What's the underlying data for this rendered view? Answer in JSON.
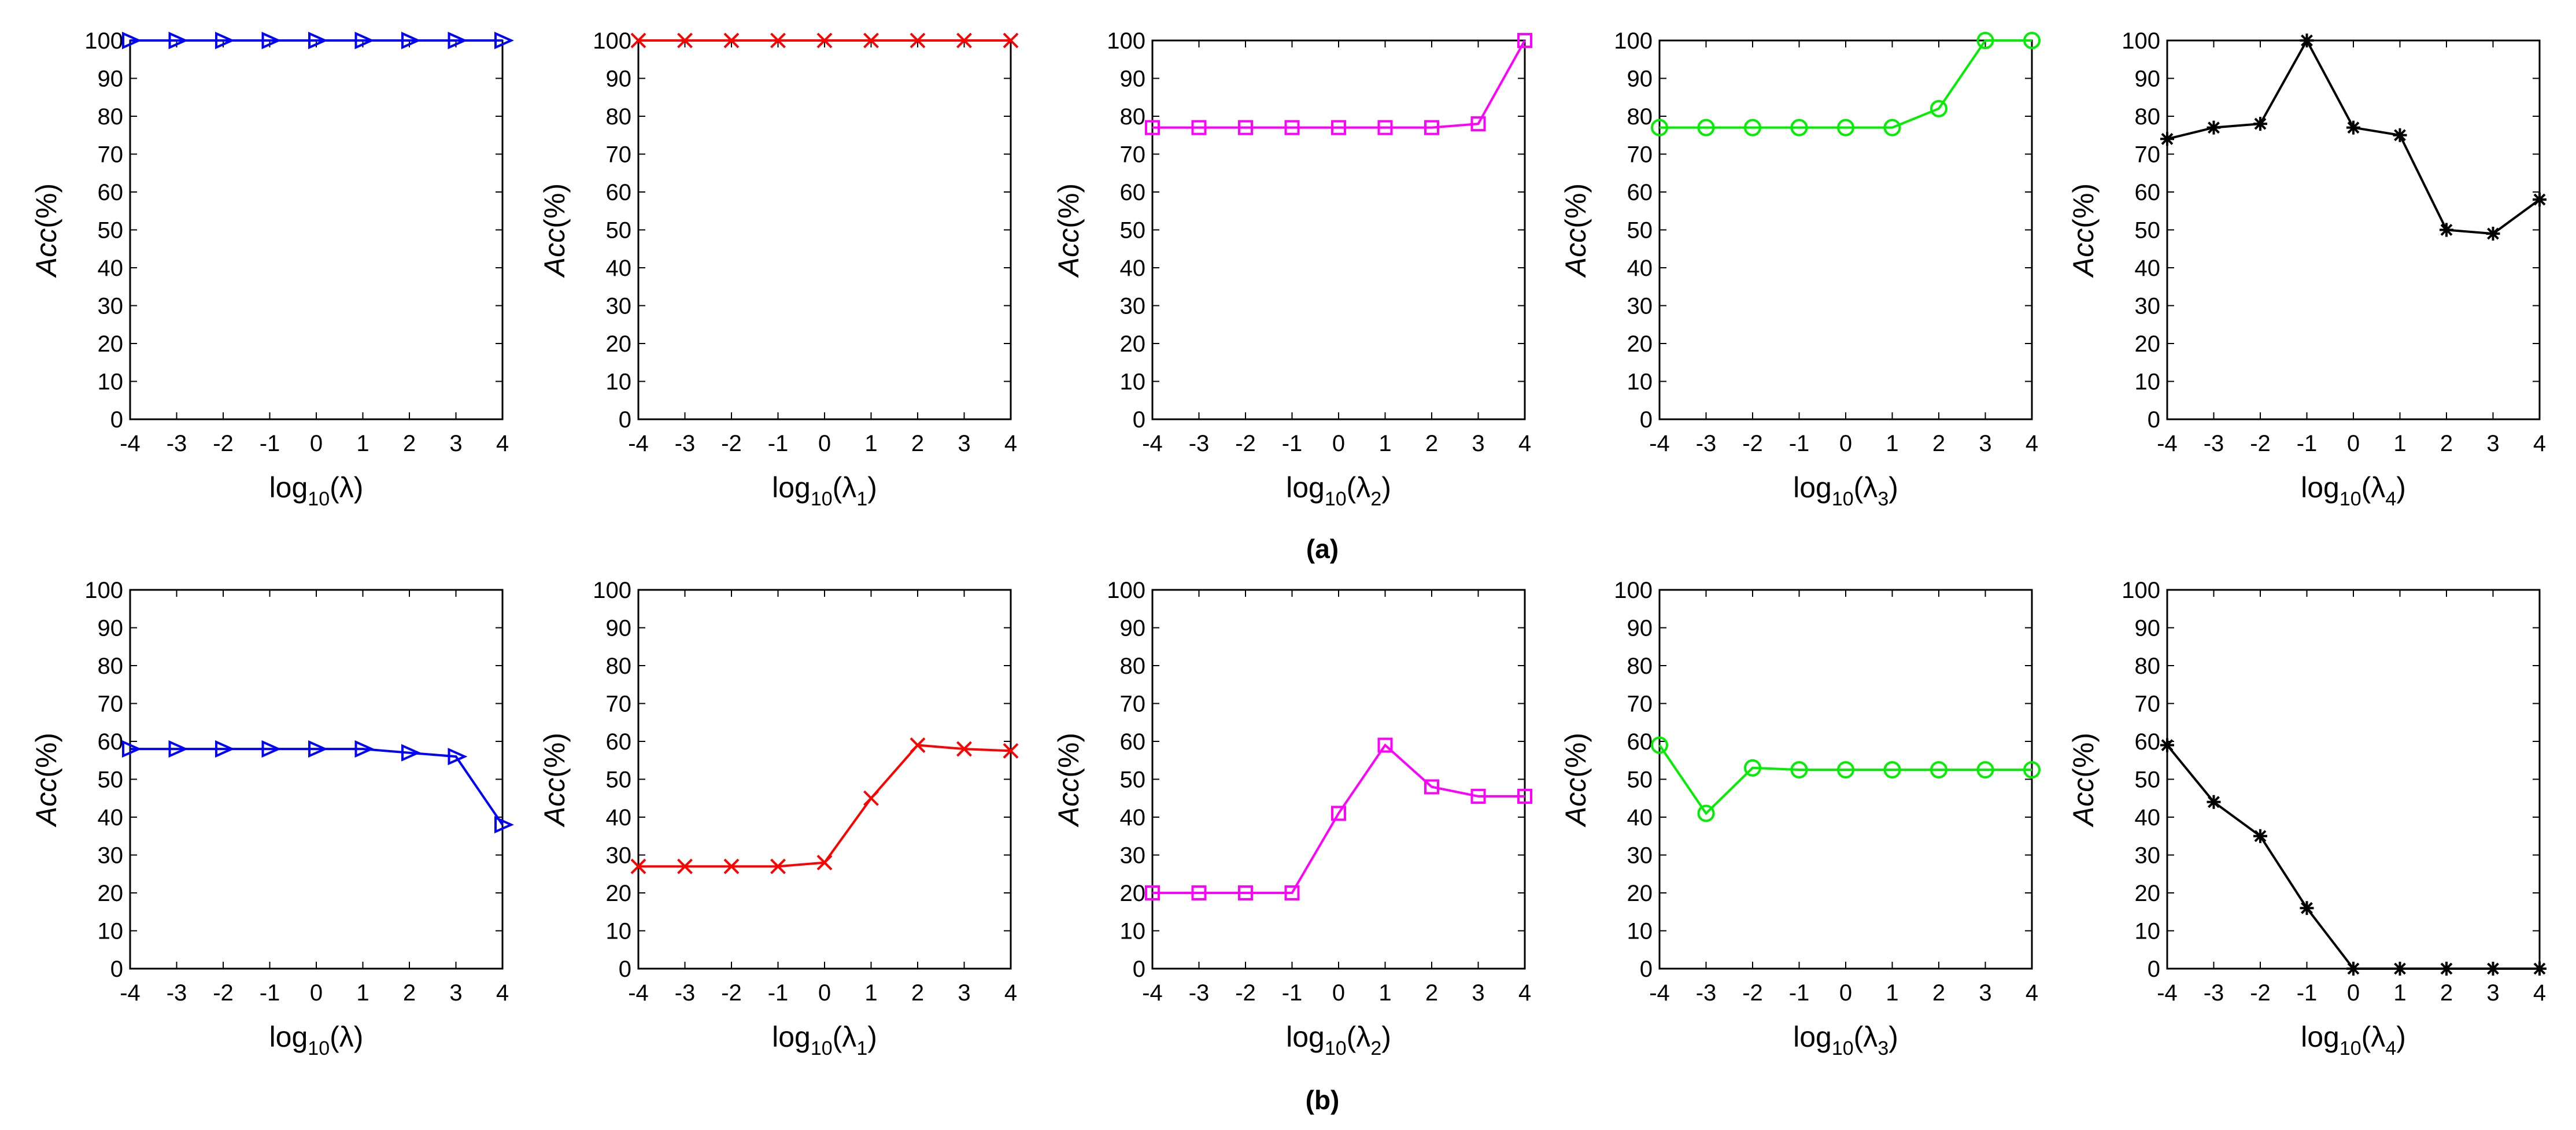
{
  "chart_data": [
    {
      "panel": "a1",
      "type": "line",
      "x": [
        -4,
        -3,
        -2,
        -1,
        0,
        1,
        2,
        3,
        4
      ],
      "values": [
        100,
        100,
        100,
        100,
        100,
        100,
        100,
        100,
        100
      ],
      "marker": "triangle-right-icon",
      "color": "#0000ff",
      "xlabel_base": "log",
      "xlabel_sub": "10",
      "xlabel_arg": "(λ)",
      "xlabel_arg_sub": "",
      "ylabel_main": "Acc",
      "ylabel_unit": "(%)",
      "ylim": [
        0,
        100
      ],
      "xlim": [
        -4,
        4
      ],
      "xticks": [
        "-4",
        "-3",
        "-2",
        "-1",
        "0",
        "1",
        "2",
        "3",
        "4"
      ],
      "yticks": [
        "0",
        "10",
        "20",
        "30",
        "40",
        "50",
        "60",
        "70",
        "80",
        "90",
        "100"
      ]
    },
    {
      "panel": "a2",
      "type": "line",
      "x": [
        -4,
        -3,
        -2,
        -1,
        0,
        1,
        2,
        3,
        4
      ],
      "values": [
        100,
        100,
        100,
        100,
        100,
        100,
        100,
        100,
        100
      ],
      "marker": "x-mark-icon",
      "color": "#ff0000",
      "xlabel_base": "log",
      "xlabel_sub": "10",
      "xlabel_arg": "(λ",
      "xlabel_arg_sub": "1",
      "ylabel_main": "Acc",
      "ylabel_unit": "(%)",
      "ylim": [
        0,
        100
      ],
      "xlim": [
        -4,
        4
      ],
      "xticks": [
        "-4",
        "-3",
        "-2",
        "-1",
        "0",
        "1",
        "2",
        "3",
        "4"
      ],
      "yticks": [
        "0",
        "10",
        "20",
        "30",
        "40",
        "50",
        "60",
        "70",
        "80",
        "90",
        "100"
      ]
    },
    {
      "panel": "a3",
      "type": "line",
      "x": [
        -4,
        -3,
        -2,
        -1,
        0,
        1,
        2,
        3,
        4
      ],
      "values": [
        77,
        77,
        77,
        77,
        77,
        77,
        77,
        78,
        100
      ],
      "marker": "square-icon",
      "color": "#ff00ff",
      "xlabel_base": "log",
      "xlabel_sub": "10",
      "xlabel_arg": "(λ",
      "xlabel_arg_sub": "2",
      "ylabel_main": "Acc",
      "ylabel_unit": "(%)",
      "ylim": [
        0,
        100
      ],
      "xlim": [
        -4,
        4
      ],
      "xticks": [
        "-4",
        "-3",
        "-2",
        "-1",
        "0",
        "1",
        "2",
        "3",
        "4"
      ],
      "yticks": [
        "0",
        "10",
        "20",
        "30",
        "40",
        "50",
        "60",
        "70",
        "80",
        "90",
        "100"
      ]
    },
    {
      "panel": "a4",
      "type": "line",
      "x": [
        -4,
        -3,
        -2,
        -1,
        0,
        1,
        2,
        3,
        4
      ],
      "values": [
        77,
        77,
        77,
        77,
        77,
        77,
        82,
        100,
        100
      ],
      "marker": "circle-icon",
      "color": "#00ee00",
      "xlabel_base": "log",
      "xlabel_sub": "10",
      "xlabel_arg": "(λ",
      "xlabel_arg_sub": "3",
      "ylabel_main": "Acc",
      "ylabel_unit": "(%)",
      "ylim": [
        0,
        100
      ],
      "xlim": [
        -4,
        4
      ],
      "xticks": [
        "-4",
        "-3",
        "-2",
        "-1",
        "0",
        "1",
        "2",
        "3",
        "4"
      ],
      "yticks": [
        "0",
        "10",
        "20",
        "30",
        "40",
        "50",
        "60",
        "70",
        "80",
        "90",
        "100"
      ]
    },
    {
      "panel": "a5",
      "type": "line",
      "x": [
        -4,
        -3,
        -2,
        -1,
        0,
        1,
        2,
        3,
        4
      ],
      "values": [
        74,
        77,
        78,
        100,
        77,
        75,
        50,
        49,
        58
      ],
      "marker": "asterisk-icon",
      "color": "#000000",
      "xlabel_base": "log",
      "xlabel_sub": "10",
      "xlabel_arg": "(λ",
      "xlabel_arg_sub": "4",
      "ylabel_main": "Acc",
      "ylabel_unit": "(%)",
      "ylim": [
        0,
        100
      ],
      "xlim": [
        -4,
        4
      ],
      "xticks": [
        "-4",
        "-3",
        "-2",
        "-1",
        "0",
        "1",
        "2",
        "3",
        "4"
      ],
      "yticks": [
        "0",
        "10",
        "20",
        "30",
        "40",
        "50",
        "60",
        "70",
        "80",
        "90",
        "100"
      ]
    },
    {
      "panel": "b1",
      "type": "line",
      "x": [
        -4,
        -3,
        -2,
        -1,
        0,
        1,
        2,
        3,
        4
      ],
      "values": [
        58,
        58,
        58,
        58,
        58,
        58,
        57,
        56,
        38
      ],
      "marker": "triangle-right-icon",
      "color": "#0000ff",
      "xlabel_base": "log",
      "xlabel_sub": "10",
      "xlabel_arg": "(λ)",
      "xlabel_arg_sub": "",
      "ylabel_main": "Acc",
      "ylabel_unit": "(%)",
      "ylim": [
        0,
        100
      ],
      "xlim": [
        -4,
        4
      ],
      "xticks": [
        "-4",
        "-3",
        "-2",
        "-1",
        "0",
        "1",
        "2",
        "3",
        "4"
      ],
      "yticks": [
        "0",
        "10",
        "20",
        "30",
        "40",
        "50",
        "60",
        "70",
        "80",
        "90",
        "100"
      ]
    },
    {
      "panel": "b2",
      "type": "line",
      "x": [
        -4,
        -3,
        -2,
        -1,
        0,
        1,
        2,
        3,
        4
      ],
      "values": [
        27,
        27,
        27,
        27,
        28,
        45,
        59,
        58,
        57.5
      ],
      "marker": "x-mark-icon",
      "color": "#ff0000",
      "xlabel_base": "log",
      "xlabel_sub": "10",
      "xlabel_arg": "(λ",
      "xlabel_arg_sub": "1",
      "ylabel_main": "Acc",
      "ylabel_unit": "(%)",
      "ylim": [
        0,
        100
      ],
      "xlim": [
        -4,
        4
      ],
      "xticks": [
        "-4",
        "-3",
        "-2",
        "-1",
        "0",
        "1",
        "2",
        "3",
        "4"
      ],
      "yticks": [
        "0",
        "10",
        "20",
        "30",
        "40",
        "50",
        "60",
        "70",
        "80",
        "90",
        "100"
      ]
    },
    {
      "panel": "b3",
      "type": "line",
      "x": [
        -4,
        -3,
        -2,
        -1,
        0,
        1,
        2,
        3,
        4
      ],
      "values": [
        20,
        20,
        20,
        20,
        41,
        59,
        48,
        45.5,
        45.5
      ],
      "marker": "square-icon",
      "color": "#ff00ff",
      "xlabel_base": "log",
      "xlabel_sub": "10",
      "xlabel_arg": "(λ",
      "xlabel_arg_sub": "2",
      "ylabel_main": "Acc",
      "ylabel_unit": "(%)",
      "ylim": [
        0,
        100
      ],
      "xlim": [
        -4,
        4
      ],
      "xticks": [
        "-4",
        "-3",
        "-2",
        "-1",
        "0",
        "1",
        "2",
        "3",
        "4"
      ],
      "yticks": [
        "0",
        "10",
        "20",
        "30",
        "40",
        "50",
        "60",
        "70",
        "80",
        "90",
        "100"
      ]
    },
    {
      "panel": "b4",
      "type": "line",
      "x": [
        -4,
        -3,
        -2,
        -1,
        0,
        1,
        2,
        3,
        4
      ],
      "values": [
        59,
        41,
        53,
        52.5,
        52.5,
        52.5,
        52.5,
        52.5,
        52.5
      ],
      "marker": "circle-icon",
      "color": "#00ee00",
      "xlabel_base": "log",
      "xlabel_sub": "10",
      "xlabel_arg": "(λ",
      "xlabel_arg_sub": "3",
      "ylabel_main": "Acc",
      "ylabel_unit": "(%)",
      "ylim": [
        0,
        100
      ],
      "xlim": [
        -4,
        4
      ],
      "xticks": [
        "-4",
        "-3",
        "-2",
        "-1",
        "0",
        "1",
        "2",
        "3",
        "4"
      ],
      "yticks": [
        "0",
        "10",
        "20",
        "30",
        "40",
        "50",
        "60",
        "70",
        "80",
        "90",
        "100"
      ]
    },
    {
      "panel": "b5",
      "type": "line",
      "x": [
        -4,
        -3,
        -2,
        -1,
        0,
        1,
        2,
        3,
        4
      ],
      "values": [
        59,
        44,
        35,
        16,
        0,
        0,
        0,
        0,
        0
      ],
      "marker": "asterisk-icon",
      "color": "#000000",
      "xlabel_base": "log",
      "xlabel_sub": "10",
      "xlabel_arg": "(λ",
      "xlabel_arg_sub": "4",
      "ylabel_main": "Acc",
      "ylabel_unit": "(%)",
      "ylim": [
        0,
        100
      ],
      "xlim": [
        -4,
        4
      ],
      "xticks": [
        "-4",
        "-3",
        "-2",
        "-1",
        "0",
        "1",
        "2",
        "3",
        "4"
      ],
      "yticks": [
        "0",
        "10",
        "20",
        "30",
        "40",
        "50",
        "60",
        "70",
        "80",
        "90",
        "100"
      ]
    }
  ],
  "captions": {
    "a": "(a)",
    "b": "(b)"
  }
}
